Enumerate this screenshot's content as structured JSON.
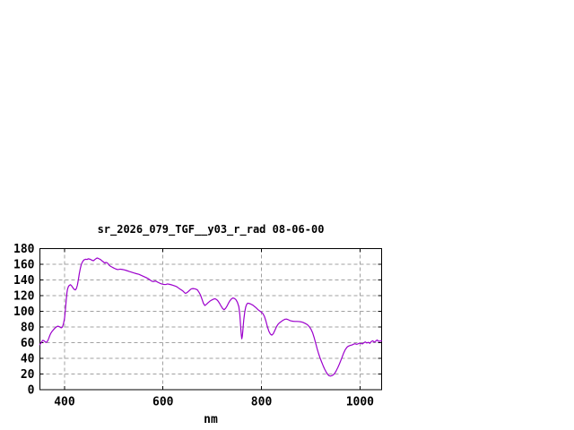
{
  "window": {
    "background": "#ffffff"
  },
  "chart_data": {
    "type": "line",
    "title": "sr_2026_079_TGF__y03_r_rad 08-06-00",
    "xlabel": "nm",
    "ylabel": "",
    "xlim": [
      350,
      1044
    ],
    "ylim": [
      0,
      180
    ],
    "x_ticks": [
      400,
      600,
      800,
      1000
    ],
    "y_ticks": [
      0,
      20,
      40,
      60,
      80,
      100,
      120,
      140,
      160,
      180
    ],
    "grid": true,
    "legend": "none",
    "colors": {
      "line": "#9c00cc",
      "frame": "#000000",
      "grid": "#a0a0a0",
      "text": "#000000",
      "background": "#ffffff"
    },
    "points": [
      [
        350,
        57.5
      ],
      [
        352,
        59.5
      ],
      [
        354,
        61.5
      ],
      [
        356,
        63
      ],
      [
        358,
        62.5
      ],
      [
        360,
        61.5
      ],
      [
        362,
        60.3
      ],
      [
        364,
        60.8
      ],
      [
        366,
        62.5
      ],
      [
        368,
        65.5
      ],
      [
        370,
        69
      ],
      [
        372,
        71.8
      ],
      [
        374,
        73.8
      ],
      [
        376,
        75.3
      ],
      [
        378,
        76.8
      ],
      [
        380,
        78.2
      ],
      [
        382,
        79.3
      ],
      [
        384,
        80.3
      ],
      [
        386,
        81
      ],
      [
        388,
        80.8
      ],
      [
        390,
        80.2
      ],
      [
        392,
        79.3
      ],
      [
        394,
        79
      ],
      [
        396,
        80.2
      ],
      [
        398,
        84.5
      ],
      [
        400,
        91
      ],
      [
        401,
        97
      ],
      [
        402,
        104
      ],
      [
        403,
        111
      ],
      [
        404,
        118
      ],
      [
        405,
        124
      ],
      [
        406,
        128
      ],
      [
        408,
        131.8
      ],
      [
        410,
        133.2
      ],
      [
        412,
        134
      ],
      [
        414,
        132.8
      ],
      [
        416,
        131
      ],
      [
        418,
        129.2
      ],
      [
        420,
        127.8
      ],
      [
        422,
        127.3
      ],
      [
        424,
        129
      ],
      [
        426,
        133
      ],
      [
        428,
        140
      ],
      [
        430,
        148
      ],
      [
        432,
        154.5
      ],
      [
        434,
        159.5
      ],
      [
        436,
        162.5
      ],
      [
        438,
        164.5
      ],
      [
        440,
        165.8
      ],
      [
        443,
        166.4
      ],
      [
        446,
        166.1
      ],
      [
        448,
        167
      ],
      [
        451,
        166.6
      ],
      [
        454,
        165.8
      ],
      [
        456,
        165
      ],
      [
        459,
        164.6
      ],
      [
        462,
        166.2
      ],
      [
        464,
        167.2
      ],
      [
        466,
        168
      ],
      [
        468,
        167.6
      ],
      [
        470,
        167
      ],
      [
        473,
        166.1
      ],
      [
        476,
        164.4
      ],
      [
        479,
        163
      ],
      [
        482,
        161.4
      ],
      [
        484,
        162.4
      ],
      [
        487,
        161.8
      ],
      [
        490,
        159.2
      ],
      [
        493,
        157.6
      ],
      [
        496,
        156.6
      ],
      [
        500,
        155.2
      ],
      [
        504,
        154
      ],
      [
        508,
        153.2
      ],
      [
        513,
        153.8
      ],
      [
        517,
        153.4
      ],
      [
        521,
        152.9
      ],
      [
        526,
        152
      ],
      [
        531,
        150.9
      ],
      [
        536,
        149.9
      ],
      [
        541,
        148.9
      ],
      [
        546,
        148
      ],
      [
        551,
        147.2
      ],
      [
        556,
        145.8
      ],
      [
        561,
        144.4
      ],
      [
        566,
        142.9
      ],
      [
        571,
        141.2
      ],
      [
        575,
        139.4
      ],
      [
        578,
        138.2
      ],
      [
        581,
        137.9
      ],
      [
        584,
        138.6
      ],
      [
        587,
        138
      ],
      [
        590,
        136.9
      ],
      [
        594,
        135.7
      ],
      [
        598,
        134.8
      ],
      [
        602,
        134.2
      ],
      [
        606,
        134.2
      ],
      [
        609,
        134.9
      ],
      [
        612,
        134.6
      ],
      [
        616,
        134
      ],
      [
        620,
        133.2
      ],
      [
        624,
        132.3
      ],
      [
        628,
        131.3
      ],
      [
        632,
        129.5
      ],
      [
        635,
        128.2
      ],
      [
        638,
        127
      ],
      [
        641,
        125.6
      ],
      [
        644,
        123.6
      ],
      [
        646,
        122.9
      ],
      [
        649,
        124
      ],
      [
        652,
        125.6
      ],
      [
        655,
        127.4
      ],
      [
        658,
        128.8
      ],
      [
        661,
        129
      ],
      [
        664,
        128.8
      ],
      [
        667,
        128.2
      ],
      [
        670,
        127.2
      ],
      [
        673,
        124.4
      ],
      [
        676,
        121
      ],
      [
        679,
        115.8
      ],
      [
        682,
        110.3
      ],
      [
        685,
        107.4
      ],
      [
        688,
        108.8
      ],
      [
        691,
        110.6
      ],
      [
        695,
        112.8
      ],
      [
        699,
        114.4
      ],
      [
        703,
        115.6
      ],
      [
        706,
        116
      ],
      [
        709,
        114.9
      ],
      [
        712,
        112.9
      ],
      [
        715,
        110
      ],
      [
        718,
        106.6
      ],
      [
        721,
        103.6
      ],
      [
        724,
        102
      ],
      [
        727,
        103.6
      ],
      [
        730,
        106.6
      ],
      [
        733,
        110.4
      ],
      [
        736,
        113.6
      ],
      [
        739,
        115.8
      ],
      [
        742,
        117
      ],
      [
        745,
        116.4
      ],
      [
        748,
        114.9
      ],
      [
        751,
        111.6
      ],
      [
        754,
        106
      ],
      [
        756,
        96
      ],
      [
        758,
        78
      ],
      [
        759,
        70
      ],
      [
        760,
        65
      ],
      [
        761,
        68
      ],
      [
        762,
        74
      ],
      [
        763,
        82
      ],
      [
        764,
        89
      ],
      [
        766,
        99
      ],
      [
        768,
        105.6
      ],
      [
        770,
        108.9
      ],
      [
        772,
        110.4
      ],
      [
        775,
        110
      ],
      [
        778,
        109.3
      ],
      [
        781,
        108.4
      ],
      [
        784,
        107.1
      ],
      [
        787,
        105.6
      ],
      [
        790,
        103.9
      ],
      [
        793,
        102.1
      ],
      [
        796,
        100.6
      ],
      [
        800,
        98.9
      ],
      [
        803,
        97
      ],
      [
        806,
        93.4
      ],
      [
        809,
        87.6
      ],
      [
        812,
        80.4
      ],
      [
        815,
        74.6
      ],
      [
        818,
        71
      ],
      [
        821,
        69.6
      ],
      [
        824,
        71.4
      ],
      [
        827,
        75.4
      ],
      [
        830,
        79.6
      ],
      [
        833,
        82.9
      ],
      [
        836,
        85
      ],
      [
        839,
        86.4
      ],
      [
        842,
        87.8
      ],
      [
        845,
        89
      ],
      [
        848,
        89.9
      ],
      [
        851,
        90.1
      ],
      [
        854,
        89.4
      ],
      [
        857,
        88.4
      ],
      [
        860,
        87.8
      ],
      [
        864,
        87.3
      ],
      [
        868,
        87.1
      ],
      [
        872,
        87.1
      ],
      [
        876,
        86.9
      ],
      [
        880,
        86.6
      ],
      [
        884,
        85.9
      ],
      [
        888,
        84.8
      ],
      [
        892,
        83.4
      ],
      [
        895,
        81.9
      ],
      [
        898,
        79.6
      ],
      [
        901,
        76.6
      ],
      [
        904,
        72.4
      ],
      [
        907,
        66.4
      ],
      [
        910,
        59.4
      ],
      [
        913,
        52.4
      ],
      [
        916,
        46
      ],
      [
        919,
        40.4
      ],
      [
        922,
        35.6
      ],
      [
        925,
        30.9
      ],
      [
        928,
        26.6
      ],
      [
        931,
        23
      ],
      [
        934,
        19.9
      ],
      [
        937,
        17.9
      ],
      [
        940,
        17.4
      ],
      [
        943,
        17.9
      ],
      [
        946,
        19
      ],
      [
        949,
        21.1
      ],
      [
        952,
        24.4
      ],
      [
        955,
        28.1
      ],
      [
        958,
        32.4
      ],
      [
        961,
        37.1
      ],
      [
        964,
        41.9
      ],
      [
        967,
        46.9
      ],
      [
        970,
        50.9
      ],
      [
        973,
        53.6
      ],
      [
        975,
        54.9
      ],
      [
        978,
        55.9
      ],
      [
        981,
        56.6
      ],
      [
        984,
        57.1
      ],
      [
        987,
        58.1
      ],
      [
        990,
        58.6
      ],
      [
        993,
        57.9
      ],
      [
        996,
        58.4
      ],
      [
        999,
        59.4
      ],
      [
        1002,
        58.9
      ],
      [
        1005,
        58.4
      ],
      [
        1008,
        59.9
      ],
      [
        1011,
        60.9
      ],
      [
        1014,
        59.6
      ],
      [
        1017,
        60.4
      ],
      [
        1020,
        59.1
      ],
      [
        1023,
        61.4
      ],
      [
        1026,
        62.4
      ],
      [
        1029,
        60.6
      ],
      [
        1032,
        61.9
      ],
      [
        1035,
        63.4
      ],
      [
        1038,
        61.6
      ],
      [
        1041,
        62
      ],
      [
        1044,
        62.3
      ]
    ]
  }
}
